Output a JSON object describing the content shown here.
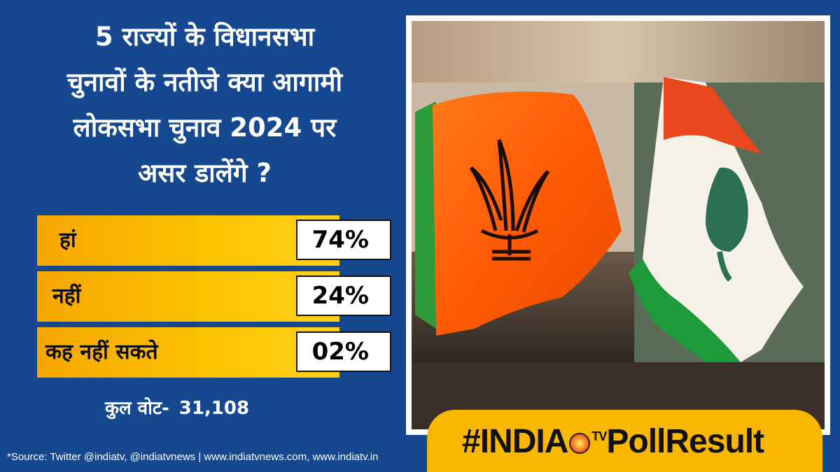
{
  "title_lines": [
    "5 राज्यों के विधानसभा",
    "चुनावों के नतीजे क्या आगामी",
    "लोकसभा चुनाव 2024 पर",
    "असर डालेंगे ?"
  ],
  "options": [
    {
      "label": "हां",
      "value": "74%"
    },
    {
      "label": "नहीं",
      "value": "24%"
    },
    {
      "label": "कह नहीं सकते",
      "value": "02%"
    }
  ],
  "votes": {
    "label": "कुल वोट-",
    "count": "31,108"
  },
  "source": "*Source: Twitter @indiatv, @indiatvnews | www.indiatvnews.com, www.indiatv.in",
  "banner": {
    "prefix": "#INDIA",
    "tv": "TV",
    "suffix": "PollResult"
  },
  "colors": {
    "background": "#16488f",
    "bar": "#fdc200",
    "banner": "#f9b700"
  }
}
